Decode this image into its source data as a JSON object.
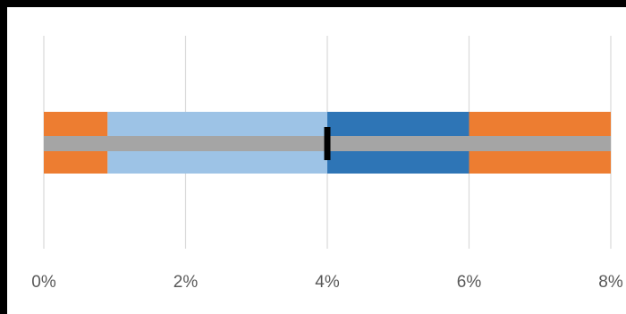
{
  "chart_data": {
    "type": "bullet",
    "title": "",
    "xlabel": "",
    "ylabel": "",
    "xlim": [
      0,
      8
    ],
    "x_ticks": [
      0,
      2,
      4,
      6,
      8
    ],
    "x_tick_labels": [
      "0%",
      "2%",
      "4%",
      "6%",
      "8%"
    ],
    "grid": true,
    "legend": "none",
    "background_bands": [
      {
        "start": 0,
        "end": 0.9,
        "color": "#ed7d31"
      },
      {
        "start": 0.9,
        "end": 4,
        "color": "#9dc3e6"
      },
      {
        "start": 4,
        "end": 6,
        "color": "#2e75b6"
      },
      {
        "start": 6,
        "end": 8,
        "color": "#ed7d31"
      }
    ],
    "measure": {
      "value": 8,
      "color": "#a5a5a5"
    },
    "target": {
      "value": 4,
      "color": "#000000"
    }
  }
}
